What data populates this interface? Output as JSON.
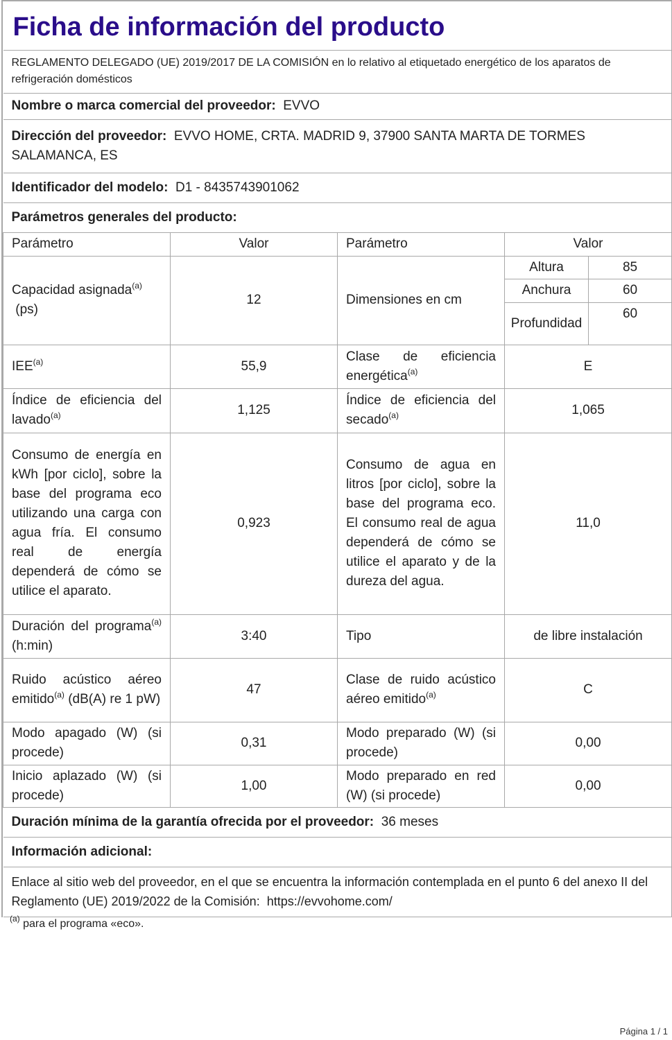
{
  "title": "Ficha de información del producto",
  "regulation": "REGLAMENTO DELEGADO (UE) 2019/2017 DE LA COMISIÓN en lo relativo al etiquetado energético de los aparatos de refrigeración domésticos",
  "supplier": {
    "label": "Nombre o marca comercial del proveedor:",
    "value": "EVVO"
  },
  "address": {
    "label": "Dirección del proveedor:",
    "value": "EVVO HOME, CRTA. MADRID 9, 37900 SANTA MARTA DE TORMES SALAMANCA, ES"
  },
  "model": {
    "label": "Identificador del modelo:",
    "value": "D1 - 8435743901062"
  },
  "general": "Parámetros generales del producto:",
  "sup": "(a)",
  "headers": [
    "Parámetro",
    "Valor",
    "Parámetro",
    "Valor"
  ],
  "capacity": {
    "label": "Capacidad asignada",
    "unit": "(ps)",
    "value": "12"
  },
  "dimensions": {
    "label": "Dimensiones en cm",
    "rows": [
      {
        "name": "Altura",
        "value": "85"
      },
      {
        "name": "Anchura",
        "value": "60"
      },
      {
        "name": "Profundidad",
        "value": "60"
      }
    ]
  },
  "rows": [
    {
      "p1": "IEE",
      "s1": true,
      "v1": "55,9",
      "p2": "Clase de eficiencia energética",
      "s2": true,
      "v2": "E"
    },
    {
      "p1": "Índice de eficiencia del lavado",
      "s1": true,
      "v1": "1,125",
      "p2": "Índice de eficiencia del secado",
      "s2": true,
      "v2": "1,065"
    },
    {
      "p1": "Consumo de energía en kWh [por ciclo], sobre la base del programa eco utilizando una carga con agua fría. El consumo real de energía dependerá de cómo se utilice el aparato.",
      "v1": "0,923",
      "p2": "Consumo de agua en litros [por ciclo], sobre la base del programa eco. El consumo real de agua dependerá de cómo se utilice el aparato y de la dureza del agua.",
      "v2": "11,0"
    },
    {
      "p1": "Duración del programa",
      "s1": true,
      "t1": " (h:min)",
      "v1": "3:40",
      "p2": "Tipo",
      "v2": "de libre instalación"
    },
    {
      "p1": "Ruido acústico aéreo emitido",
      "s1": true,
      "t1": " (dB(A) re 1 pW)",
      "v1": "47",
      "p2": "Clase de ruido acústico aéreo emitido",
      "s2": true,
      "v2": "C"
    },
    {
      "p1": "Modo apagado (W) (si procede)",
      "v1": "0,31",
      "p2": "Modo preparado (W) (si procede)",
      "v2": "0,00"
    },
    {
      "p1": "Inicio aplazado (W) (si procede)",
      "v1": "1,00",
      "p2": "Modo preparado en red (W) (si procede)",
      "v2": "0,00"
    }
  ],
  "warranty": {
    "label": "Duración mínima de la garantía ofrecida por el proveedor:",
    "value": "36 meses"
  },
  "additional": "Información adicional:",
  "link_text": "Enlace al sitio web del proveedor, en el que se encuentra la información contemplada en el punto 6 del anexo II del Reglamento (UE) 2019/2022 de la Comisión:",
  "link_url": "https://evvohome.com/",
  "footnote": "para el programa «eco».",
  "page": "Página 1 / 1",
  "colors": {
    "title": "#2a0d8a",
    "border": "#a8a8a8"
  }
}
